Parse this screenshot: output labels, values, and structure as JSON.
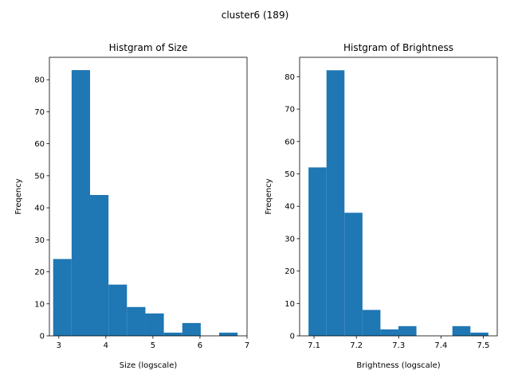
{
  "figure": {
    "suptitle": "cluster6 (189)"
  },
  "colors": {
    "bar": "#1f77b4",
    "axes": "#000000",
    "background": "#ffffff"
  },
  "chart_data": [
    {
      "type": "bar",
      "title": "Histgram of Size",
      "xlabel": "Size (logscale)",
      "ylabel": "Freqency",
      "bin_edges": [
        2.88,
        3.272,
        3.664,
        4.056,
        4.448,
        4.84,
        5.232,
        5.624,
        6.016,
        6.408,
        6.8
      ],
      "counts": [
        24,
        83,
        44,
        16,
        9,
        7,
        1,
        4,
        0,
        1
      ],
      "xlim": [
        2.8,
        7.0
      ],
      "ylim": [
        0,
        87
      ],
      "xticks": [
        3,
        4,
        5,
        6,
        7
      ],
      "yticks": [
        0,
        10,
        20,
        30,
        40,
        50,
        60,
        70,
        80
      ],
      "grid": false
    },
    {
      "type": "bar",
      "title": "Histgram of Brightness",
      "xlabel": "Brightness (logscale)",
      "ylabel": "Freqency",
      "bin_edges": [
        7.087,
        7.1295,
        7.172,
        7.2145,
        7.257,
        7.2995,
        7.342,
        7.3845,
        7.427,
        7.4695,
        7.512
      ],
      "counts": [
        52,
        82,
        38,
        8,
        2,
        3,
        0,
        0,
        3,
        1
      ],
      "xlim": [
        7.066,
        7.533
      ],
      "ylim": [
        0,
        86
      ],
      "xticks": [
        7.1,
        7.2,
        7.3,
        7.4,
        7.5
      ],
      "yticks": [
        0,
        10,
        20,
        30,
        40,
        50,
        60,
        70,
        80
      ],
      "grid": false
    }
  ]
}
